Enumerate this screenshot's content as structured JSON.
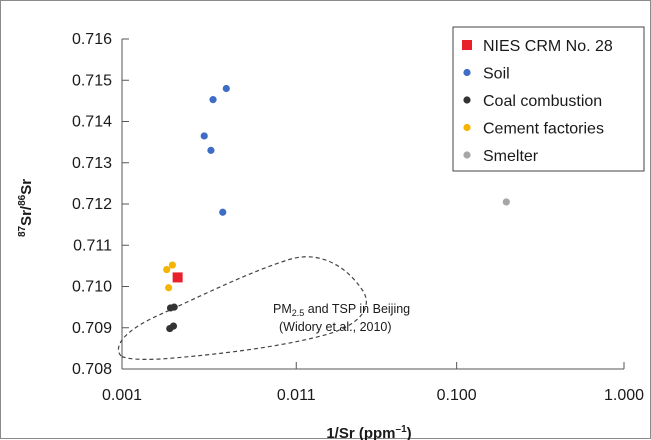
{
  "chart_data": {
    "type": "scatter",
    "xlabel": "1/Sr (ppm–1)",
    "xlabel_main": "1/Sr (ppm",
    "xlabel_sup": "–1",
    "xlabel_close": ")",
    "ylabel_sup1": "87",
    "ylabel_mid": "Sr/",
    "ylabel_sup2": "86",
    "ylabel_end": "Sr",
    "x_scale": "log",
    "xlim": [
      0.001,
      1.0
    ],
    "ylim": [
      0.708,
      0.716
    ],
    "x_ticks": [
      {
        "value": 0.001,
        "label": "0.001"
      },
      {
        "value": 0.011,
        "label": "0.011"
      },
      {
        "value": 0.1,
        "label": "0.100"
      },
      {
        "value": 1.0,
        "label": "1.000"
      }
    ],
    "y_ticks": [
      {
        "value": 0.708,
        "label": "0.708"
      },
      {
        "value": 0.709,
        "label": "0.709"
      },
      {
        "value": 0.71,
        "label": "0.710"
      },
      {
        "value": 0.711,
        "label": "0.711"
      },
      {
        "value": 0.712,
        "label": "0.712"
      },
      {
        "value": 0.713,
        "label": "0.713"
      },
      {
        "value": 0.714,
        "label": "0.714"
      },
      {
        "value": 0.715,
        "label": "0.715"
      },
      {
        "value": 0.716,
        "label": "0.716"
      }
    ],
    "grid": false,
    "legend_position": "top-right",
    "series": [
      {
        "name": "NIES CRM No. 28",
        "marker": "square",
        "color": "#e8202a",
        "points": [
          [
            0.00215,
            0.71022
          ]
        ]
      },
      {
        "name": "Soil",
        "marker": "circle",
        "color": "#3f6cc4",
        "points": [
          [
            0.0042,
            0.7148
          ],
          [
            0.0035,
            0.71453
          ],
          [
            0.0031,
            0.71365
          ],
          [
            0.0034,
            0.7133
          ],
          [
            0.004,
            0.7118
          ]
        ]
      },
      {
        "name": "Coal combustion",
        "marker": "circle",
        "color": "#333333",
        "points": [
          [
            0.00195,
            0.70948
          ],
          [
            0.00205,
            0.7095
          ],
          [
            0.00193,
            0.70898
          ],
          [
            0.00203,
            0.70904
          ]
        ]
      },
      {
        "name": "Cement factories",
        "marker": "circle",
        "color": "#f4b400",
        "points": [
          [
            0.002,
            0.71052
          ],
          [
            0.00185,
            0.71041
          ],
          [
            0.0019,
            0.70997
          ]
        ]
      },
      {
        "name": "Smelter",
        "marker": "circle",
        "color": "#a6a6a6",
        "points": [
          [
            0.198,
            0.71205
          ]
        ]
      }
    ],
    "annotation": {
      "line1_main": "PM",
      "line1_sub": "2.5",
      "line1_rest": " and TSP in Beijing",
      "line2": "(Widory et al., 2010)"
    }
  }
}
